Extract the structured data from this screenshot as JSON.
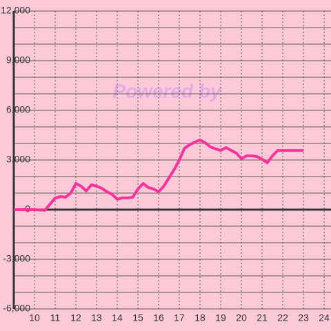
{
  "chart_data": {
    "type": "line",
    "watermark": "Powered by",
    "x": [
      9,
      10,
      10.5,
      11,
      11.25,
      11.5,
      11.75,
      12,
      12.25,
      12.5,
      12.75,
      13,
      13.25,
      13.5,
      13.75,
      14,
      14.25,
      14.5,
      14.75,
      15,
      15.25,
      15.5,
      15.75,
      16,
      16.25,
      16.5,
      16.75,
      17,
      17.25,
      17.5,
      17.75,
      18,
      18.25,
      18.5,
      18.75,
      19,
      19.25,
      19.5,
      19.75,
      20,
      20.25,
      20.5,
      20.75,
      21,
      21.25,
      21.5,
      21.75,
      22,
      23
    ],
    "series": [
      {
        "color": "#ff3399",
        "values": [
          0,
          0,
          -40,
          700,
          790,
          750,
          1000,
          1580,
          1420,
          1130,
          1500,
          1420,
          1290,
          1080,
          920,
          630,
          710,
          710,
          750,
          1250,
          1580,
          1330,
          1250,
          1080,
          1420,
          1920,
          2420,
          3000,
          3710,
          3920,
          4080,
          4210,
          4040,
          3790,
          3670,
          3580,
          3750,
          3580,
          3420,
          3080,
          3250,
          3250,
          3210,
          3040,
          2830,
          3250,
          3580,
          3580,
          3580
        ]
      }
    ],
    "xlim": [
      9,
      24.33
    ],
    "xticks": [
      10,
      11,
      12,
      13,
      14,
      15,
      16,
      17,
      18,
      19,
      20,
      21,
      22,
      23,
      24
    ],
    "ylim": [
      -6000,
      12000
    ],
    "yticks": [
      {
        "value": -6000,
        "label": "-6,000"
      },
      {
        "value": -3000,
        "label": "-3,000"
      },
      0,
      {
        "value": 3000,
        "label": "3,000"
      },
      {
        "value": 6000,
        "label": "6,000"
      },
      {
        "value": 9000,
        "label": "9,000"
      },
      {
        "value": 12000,
        "label": "12,000"
      }
    ],
    "yminor": [
      -5000,
      -4000,
      -2000,
      -1000,
      1000,
      2000,
      4000,
      5000,
      7000,
      8000,
      10000,
      11000
    ],
    "grid": true,
    "background": "#fccad8"
  }
}
